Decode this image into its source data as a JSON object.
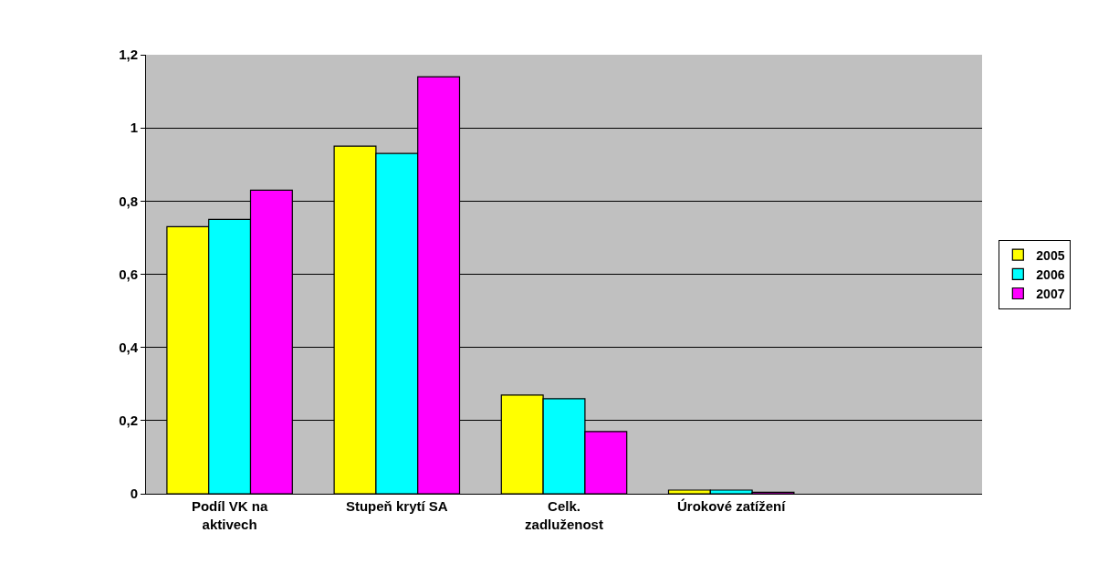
{
  "chart_data": {
    "type": "bar",
    "categories": [
      "Podíl VK na aktivech",
      "Stupeň krytí SA",
      "Celk. zadluženost",
      "Úrokové zatížení",
      null
    ],
    "series": [
      {
        "name": "2005",
        "color": "#ffff00",
        "values": [
          0.73,
          0.95,
          0.27,
          0.01,
          null
        ]
      },
      {
        "name": "2006",
        "color": "#00ffff",
        "values": [
          0.75,
          0.93,
          0.26,
          0.01,
          null
        ]
      },
      {
        "name": "2007",
        "color": "#ff00ff",
        "values": [
          0.83,
          1.14,
          0.17,
          0.004,
          null
        ]
      }
    ],
    "ylim": [
      0,
      1.2
    ],
    "yticks": [
      0,
      {
        "value": 0.2,
        "label": "0,2"
      },
      {
        "value": 0.4,
        "label": "0,4"
      },
      {
        "value": 0.6,
        "label": "0,6"
      },
      {
        "value": 0.8,
        "label": "0,8"
      },
      1,
      {
        "value": 1.2,
        "label": "1,2"
      }
    ],
    "grid": "y",
    "legend": "right"
  }
}
